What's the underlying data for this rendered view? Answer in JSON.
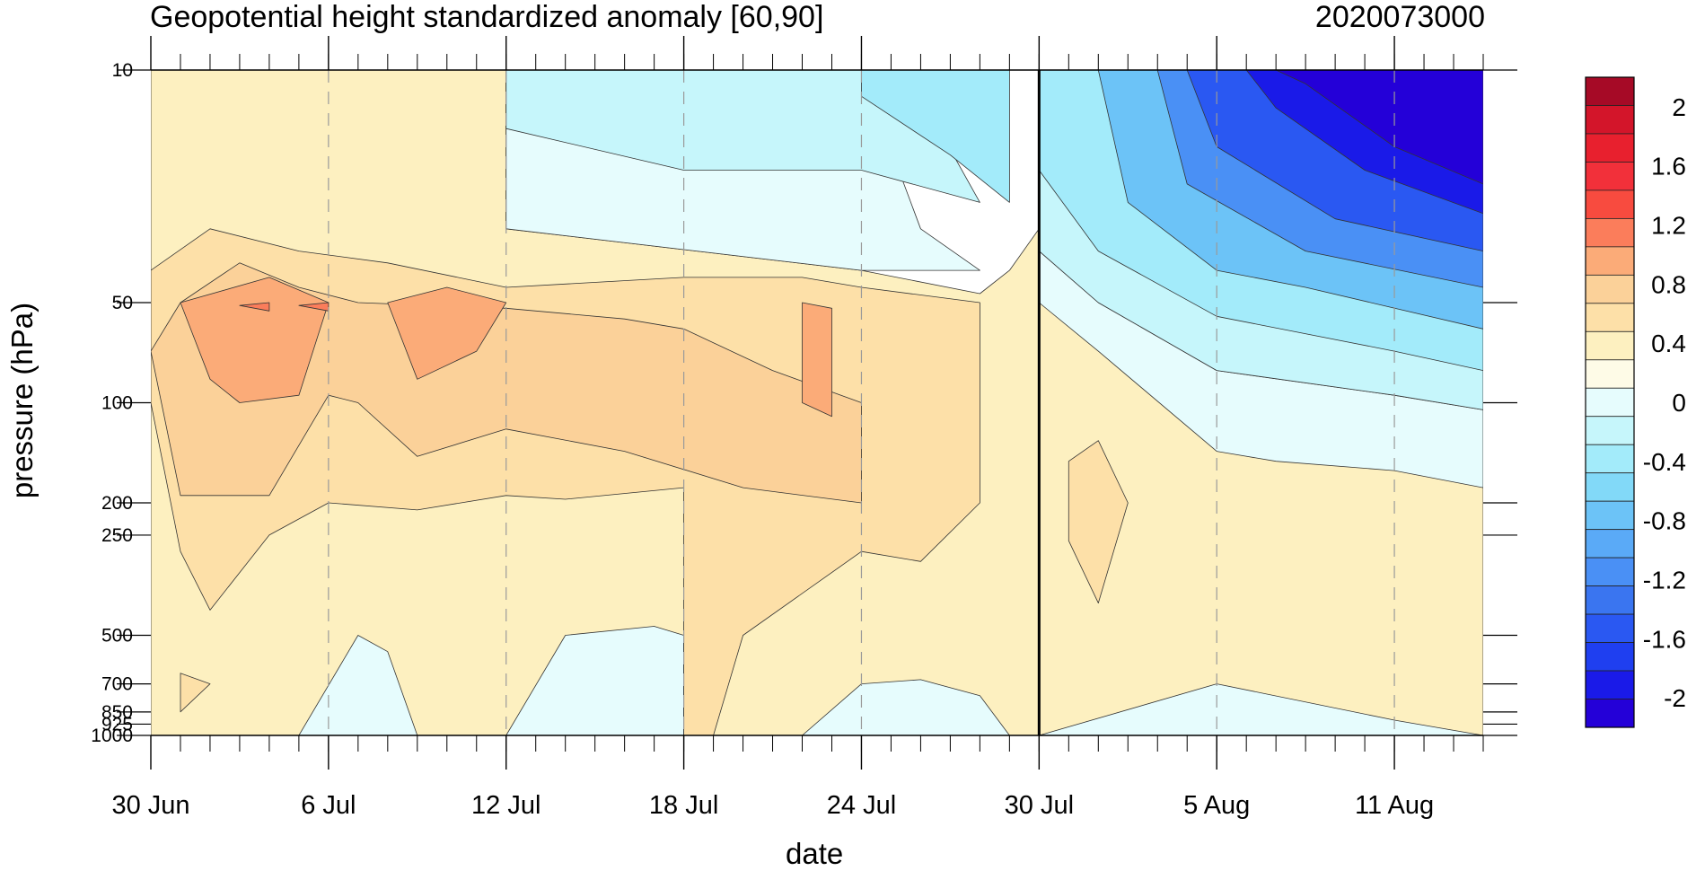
{
  "chart_data": {
    "type": "heatmap",
    "subtype": "filled-contour time-pressure cross-section",
    "title": "Geopotential height standardized anomaly [60,90]",
    "title_right": "2020073000",
    "xlabel": "date",
    "ylabel": "pressure (hPa)",
    "y_scale": "log",
    "y_inverted": true,
    "ylim": [
      1000,
      10
    ],
    "x_start": "2020-06-30",
    "x_end": "2020-08-14",
    "x_ticks": [
      {
        "date": "2020-06-30",
        "label": "30 Jun"
      },
      {
        "date": "2020-07-06",
        "label": "6 Jul"
      },
      {
        "date": "2020-07-12",
        "label": "12 Jul"
      },
      {
        "date": "2020-07-18",
        "label": "18 Jul"
      },
      {
        "date": "2020-07-24",
        "label": "24 Jul"
      },
      {
        "date": "2020-07-30",
        "label": "30 Jul"
      },
      {
        "date": "2020-08-05",
        "label": "5 Aug"
      },
      {
        "date": "2020-08-11",
        "label": "11 Aug"
      }
    ],
    "y_ticks": [
      {
        "p": 10,
        "label": "10"
      },
      {
        "p": 50,
        "label": "50"
      },
      {
        "p": 100,
        "label": "100"
      },
      {
        "p": 200,
        "label": "200"
      },
      {
        "p": 250,
        "label": "250"
      },
      {
        "p": 500,
        "label": "500"
      },
      {
        "p": 700,
        "label": "700"
      },
      {
        "p": 850,
        "label": "850"
      },
      {
        "p": 925,
        "label": "925"
      },
      {
        "p": 1000,
        "label": "1000"
      }
    ],
    "vertical_marker_date": "2020-07-30",
    "colorbar": {
      "levels": [
        -2.2,
        -2.0,
        -1.8,
        -1.6,
        -1.4,
        -1.2,
        -1.0,
        -0.8,
        -0.6,
        -0.4,
        -0.2,
        0,
        0.2,
        0.4,
        0.6,
        0.8,
        1.0,
        1.2,
        1.4,
        1.6,
        1.8,
        2.0,
        2.2
      ],
      "colors": [
        "#2400d8",
        "#1a1ae8",
        "#1f3ff0",
        "#2a58f2",
        "#3a75f0",
        "#4a90f5",
        "#5aaaf7",
        "#6cc3f7",
        "#82d9f8",
        "#a3ebfa",
        "#c6f6fb",
        "#e6fcfd",
        "#fefbe7",
        "#fdf0c0",
        "#fde0a8",
        "#fbd199",
        "#fbab78",
        "#fb7d5b",
        "#f84b3f",
        "#f2303a",
        "#e8202e",
        "#d3152a",
        "#a60a26"
      ],
      "tick_labels": [
        "2",
        "1.6",
        "1.2",
        "0.8",
        "0.4",
        "0",
        "-0.4",
        "-0.8",
        "-1.2",
        "-1.6",
        "-2"
      ],
      "tick_values": [
        2.0,
        1.6,
        1.2,
        0.8,
        0.4,
        0,
        -0.4,
        -0.8,
        -1.2,
        -1.6,
        -2.0
      ]
    },
    "regions": [
      {
        "v": 0.5,
        "pts": [
          [
            "2020-06-30",
            10
          ],
          [
            "2020-07-12",
            10
          ],
          [
            "2020-07-12",
            30
          ],
          [
            "2020-07-24",
            40
          ],
          [
            "2020-07-28",
            47
          ],
          [
            "2020-07-29",
            40
          ],
          [
            "2020-07-30",
            30
          ],
          [
            "2020-07-30",
            1000
          ],
          [
            "2020-06-30",
            1000
          ]
        ]
      },
      {
        "v": 0.1,
        "pts": [
          [
            "2020-07-12",
            10
          ],
          [
            "2020-07-18",
            10
          ],
          [
            "2020-07-24",
            10
          ],
          [
            "2020-07-26",
            30
          ],
          [
            "2020-07-28",
            40
          ],
          [
            "2020-07-24",
            40
          ],
          [
            "2020-07-12",
            30
          ]
        ]
      },
      {
        "v": -0.1,
        "pts": [
          [
            "2020-07-12",
            10
          ],
          [
            "2020-07-24",
            10
          ],
          [
            "2020-07-26",
            12
          ],
          [
            "2020-07-28",
            25
          ],
          [
            "2020-07-24",
            20
          ],
          [
            "2020-07-18",
            20
          ],
          [
            "2020-07-12",
            15
          ]
        ]
      },
      {
        "v": -0.3,
        "pts": [
          [
            "2020-07-24",
            10
          ],
          [
            "2020-07-29",
            10
          ],
          [
            "2020-07-29",
            25
          ],
          [
            "2020-07-27",
            18
          ],
          [
            "2020-07-24",
            12
          ]
        ]
      },
      {
        "v": 0.5,
        "pts": [
          [
            "2020-07-30",
            10
          ],
          [
            "2020-08-14",
            10
          ],
          [
            "2020-08-14",
            1000
          ],
          [
            "2020-07-30",
            1000
          ]
        ]
      },
      {
        "v": 0.1,
        "pts": [
          [
            "2020-07-30",
            35
          ],
          [
            "2020-08-01",
            50
          ],
          [
            "2020-08-05",
            80
          ],
          [
            "2020-08-11",
            95
          ],
          [
            "2020-08-14",
            105
          ],
          [
            "2020-08-14",
            180
          ],
          [
            "2020-08-11",
            160
          ],
          [
            "2020-08-07",
            150
          ],
          [
            "2020-08-05",
            140
          ],
          [
            "2020-08-01",
            70
          ],
          [
            "2020-07-30",
            50
          ]
        ]
      },
      {
        "v": 0.1,
        "pts": [
          [
            "2020-07-30",
            1000
          ],
          [
            "2020-08-05",
            700
          ],
          [
            "2020-08-11",
            900
          ],
          [
            "2020-08-14",
            1000
          ]
        ]
      },
      {
        "v": -0.1,
        "pts": [
          [
            "2020-07-30",
            10
          ],
          [
            "2020-08-14",
            10
          ],
          [
            "2020-08-14",
            105
          ],
          [
            "2020-08-11",
            95
          ],
          [
            "2020-08-05",
            80
          ],
          [
            "2020-08-01",
            50
          ],
          [
            "2020-07-30",
            35
          ]
        ]
      },
      {
        "v": -0.3,
        "pts": [
          [
            "2020-07-30",
            10
          ],
          [
            "2020-08-14",
            10
          ],
          [
            "2020-08-14",
            80
          ],
          [
            "2020-08-11",
            70
          ],
          [
            "2020-08-05",
            55
          ],
          [
            "2020-08-01",
            35
          ],
          [
            "2020-07-30",
            20
          ]
        ]
      },
      {
        "v": -0.7,
        "pts": [
          [
            "2020-08-01",
            10
          ],
          [
            "2020-08-14",
            10
          ],
          [
            "2020-08-14",
            60
          ],
          [
            "2020-08-08",
            45
          ],
          [
            "2020-08-05",
            40
          ],
          [
            "2020-08-02",
            25
          ]
        ]
      },
      {
        "v": -1.1,
        "pts": [
          [
            "2020-08-03",
            10
          ],
          [
            "2020-08-14",
            10
          ],
          [
            "2020-08-14",
            45
          ],
          [
            "2020-08-08",
            35
          ],
          [
            "2020-08-04",
            22
          ]
        ]
      },
      {
        "v": -1.5,
        "pts": [
          [
            "2020-08-04",
            10
          ],
          [
            "2020-08-14",
            10
          ],
          [
            "2020-08-14",
            35
          ],
          [
            "2020-08-09",
            28
          ],
          [
            "2020-08-05",
            17
          ]
        ]
      },
      {
        "v": -1.9,
        "pts": [
          [
            "2020-08-06",
            10
          ],
          [
            "2020-08-14",
            10
          ],
          [
            "2020-08-14",
            27
          ],
          [
            "2020-08-10",
            20
          ],
          [
            "2020-08-07",
            13
          ]
        ]
      },
      {
        "v": -2.1,
        "pts": [
          [
            "2020-08-07",
            10
          ],
          [
            "2020-08-14",
            10
          ],
          [
            "2020-08-14",
            22
          ],
          [
            "2020-08-11",
            17
          ],
          [
            "2020-08-08",
            11
          ]
        ]
      },
      {
        "v": 0.1,
        "pts": [
          [
            "2020-07-05",
            1000
          ],
          [
            "2020-07-07",
            500
          ],
          [
            "2020-07-08",
            560
          ],
          [
            "2020-07-09",
            1000
          ]
        ]
      },
      {
        "v": 0.1,
        "pts": [
          [
            "2020-07-12",
            1000
          ],
          [
            "2020-07-14",
            500
          ],
          [
            "2020-07-17",
            470
          ],
          [
            "2020-07-18",
            500
          ],
          [
            "2020-07-18",
            1000
          ]
        ]
      },
      {
        "v": 0.1,
        "pts": [
          [
            "2020-07-22",
            1000
          ],
          [
            "2020-07-24",
            700
          ],
          [
            "2020-07-26",
            680
          ],
          [
            "2020-07-28",
            760
          ],
          [
            "2020-07-29",
            1000
          ]
        ]
      },
      {
        "v": 0.7,
        "pts": [
          [
            "2020-06-30",
            40
          ],
          [
            "2020-07-02",
            30
          ],
          [
            "2020-07-05",
            35
          ],
          [
            "2020-07-08",
            38
          ],
          [
            "2020-07-12",
            45
          ],
          [
            "2020-07-18",
            42
          ],
          [
            "2020-07-22",
            42
          ],
          [
            "2020-07-24",
            45
          ],
          [
            "2020-07-28",
            50
          ],
          [
            "2020-07-28",
            200
          ],
          [
            "2020-07-26",
            300
          ],
          [
            "2020-07-24",
            280
          ],
          [
            "2020-07-20",
            500
          ],
          [
            "2020-07-19",
            1000
          ],
          [
            "2020-07-18",
            1000
          ],
          [
            "2020-07-18",
            180
          ],
          [
            "2020-07-14",
            195
          ],
          [
            "2020-07-12",
            190
          ],
          [
            "2020-07-09",
            210
          ],
          [
            "2020-07-06",
            200
          ],
          [
            "2020-07-04",
            250
          ],
          [
            "2020-07-02",
            420
          ],
          [
            "2020-07-01",
            280
          ],
          [
            "2020-06-30",
            100
          ]
        ]
      },
      {
        "v": 0.9,
        "pts": [
          [
            "2020-06-30",
            70
          ],
          [
            "2020-07-01",
            50
          ],
          [
            "2020-07-03",
            38
          ],
          [
            "2020-07-05",
            45
          ],
          [
            "2020-07-07",
            50
          ],
          [
            "2020-07-12",
            52
          ],
          [
            "2020-07-16",
            56
          ],
          [
            "2020-07-18",
            60
          ],
          [
            "2020-07-21",
            80
          ],
          [
            "2020-07-24",
            100
          ],
          [
            "2020-07-24",
            200
          ],
          [
            "2020-07-20",
            180
          ],
          [
            "2020-07-16",
            140
          ],
          [
            "2020-07-12",
            120
          ],
          [
            "2020-07-09",
            145
          ],
          [
            "2020-07-07",
            100
          ],
          [
            "2020-07-06",
            95
          ],
          [
            "2020-07-04",
            190
          ],
          [
            "2020-07-01",
            190
          ]
        ]
      },
      {
        "v": 1.1,
        "pts": [
          [
            "2020-07-01",
            50
          ],
          [
            "2020-07-04",
            42
          ],
          [
            "2020-07-06",
            50
          ],
          [
            "2020-07-05",
            95
          ],
          [
            "2020-07-03",
            100
          ],
          [
            "2020-07-02",
            85
          ]
        ]
      },
      {
        "v": 1.1,
        "pts": [
          [
            "2020-07-08",
            50
          ],
          [
            "2020-07-10",
            45
          ],
          [
            "2020-07-12",
            50
          ],
          [
            "2020-07-11",
            70
          ],
          [
            "2020-07-09",
            85
          ]
        ]
      },
      {
        "v": 1.1,
        "pts": [
          [
            "2020-07-22",
            50
          ],
          [
            "2020-07-23",
            52
          ],
          [
            "2020-07-23",
            110
          ],
          [
            "2020-07-22",
            100
          ]
        ]
      },
      {
        "v": 1.3,
        "pts": [
          [
            "2020-07-03",
            51
          ],
          [
            "2020-07-04",
            50
          ],
          [
            "2020-07-04",
            53
          ]
        ]
      },
      {
        "v": 1.3,
        "pts": [
          [
            "2020-07-05",
            51
          ],
          [
            "2020-07-06",
            50
          ],
          [
            "2020-07-06",
            53
          ]
        ]
      },
      {
        "v": 0.7,
        "pts": [
          [
            "2020-07-31",
            150
          ],
          [
            "2020-08-01",
            130
          ],
          [
            "2020-08-02",
            200
          ],
          [
            "2020-08-01",
            400
          ],
          [
            "2020-07-31",
            260
          ]
        ]
      },
      {
        "v": 0.7,
        "pts": [
          [
            "2020-07-01",
            650
          ],
          [
            "2020-07-02",
            700
          ],
          [
            "2020-07-01",
            850
          ]
        ]
      }
    ]
  }
}
